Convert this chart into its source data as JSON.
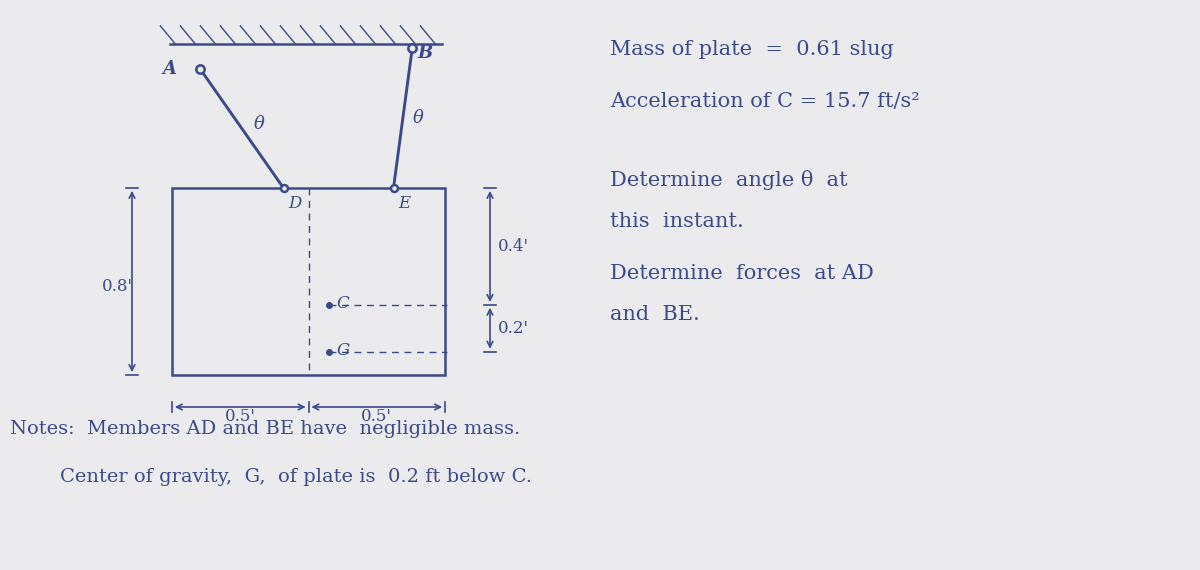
{
  "bg_color": "#ebebee",
  "ink_color": "#3a4a8a",
  "line1": "Mass of plate  =  0.61 slug",
  "line2": "Acceleration of C = 15.7 ft/s²",
  "line3": "Determine  angle θ  at",
  "line4": "this  instant.",
  "line5": "Determine  forces  at AD",
  "line6": "and  BE.",
  "note1": "Notes:  Members AD and BE have  negligible mass.",
  "note2": "        Center of gravity,  G,  of plate is  0.2 ft below C.",
  "dim_label_fontsize": 12,
  "text_fontsize": 15,
  "note_fontsize": 14
}
